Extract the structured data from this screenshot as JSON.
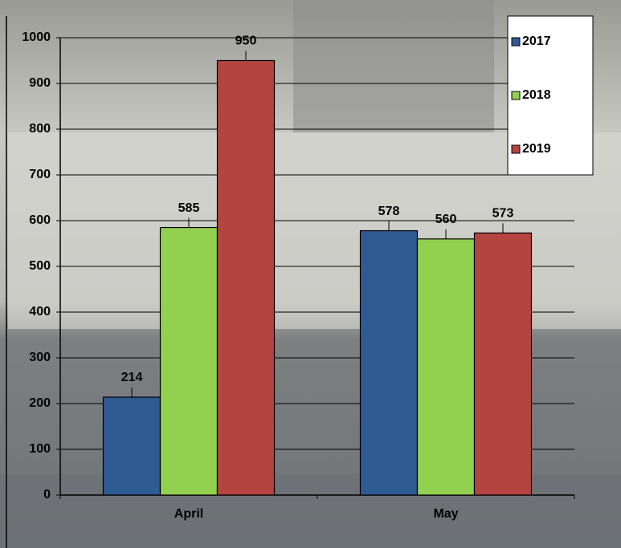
{
  "chart_data": {
    "type": "bar",
    "categories": [
      "April",
      "May"
    ],
    "series": [
      {
        "name": "2017",
        "color": "#2f5b93",
        "values": [
          214,
          578
        ]
      },
      {
        "name": "2018",
        "color": "#92d050",
        "values": [
          585,
          560
        ]
      },
      {
        "name": "2019",
        "color": "#b3443f",
        "values": [
          950,
          573
        ]
      }
    ],
    "ylim": [
      0,
      1000
    ],
    "yticks": [
      0,
      100,
      200,
      300,
      400,
      500,
      600,
      700,
      800,
      900,
      1000
    ],
    "grid": true,
    "legend": "top-right"
  }
}
